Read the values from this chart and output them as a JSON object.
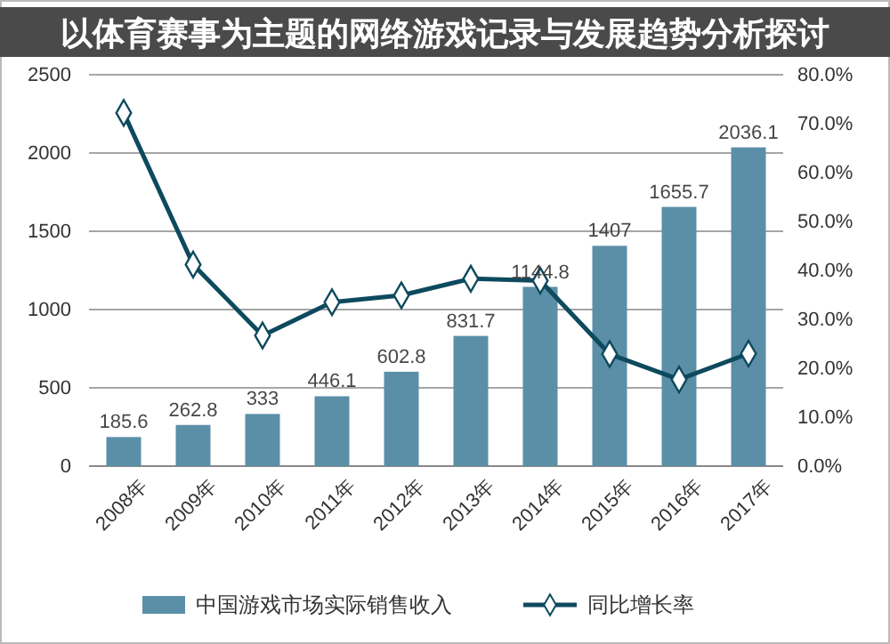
{
  "chart_data": {
    "type": "bar",
    "title": "以体育赛事为主题的网络游戏记录与发展趋势分析探讨",
    "categories": [
      "2008年",
      "2009年",
      "2010年",
      "2011年",
      "2012年",
      "2013年",
      "2014年",
      "2015年",
      "2016年",
      "2017年"
    ],
    "series": [
      {
        "name": "中国游戏市场实际销售收入",
        "color": "#5b8fa8",
        "values": [
          185.6,
          262.8,
          333,
          446.1,
          602.8,
          831.7,
          1144.8,
          1407,
          1655.7,
          2036.1
        ],
        "value_labels": [
          "185.6",
          "262.8",
          "333",
          "446.1",
          "602.8",
          "831.7",
          "1144.8",
          "1407",
          "1655.7",
          "2036.1"
        ]
      },
      {
        "name": "同比增长率",
        "type": "line",
        "axis": "y2",
        "color": "#0e4a5e",
        "marker": "diamond",
        "values": [
          72.2,
          41.2,
          26.7,
          33.5,
          34.9,
          38.3,
          37.9,
          22.9,
          17.7,
          23.0
        ]
      }
    ],
    "ylim": [
      0,
      2500
    ],
    "yticks": [
      0,
      500,
      1000,
      1500,
      2000,
      2500
    ],
    "y2lim": [
      0,
      80
    ],
    "y2ticks": [
      {
        "value": 0,
        "label": "0.0%"
      },
      {
        "value": 10,
        "label": "10.0%"
      },
      {
        "value": 20,
        "label": "20.0%"
      },
      {
        "value": 30,
        "label": "30.0%"
      },
      {
        "value": 40,
        "label": "40.0%"
      },
      {
        "value": 50,
        "label": "50.0%"
      },
      {
        "value": 60,
        "label": "60.0%"
      },
      {
        "value": 70,
        "label": "70.0%"
      },
      {
        "value": 80,
        "label": "80.0%"
      }
    ],
    "grid": "y",
    "legend": "bottom"
  }
}
